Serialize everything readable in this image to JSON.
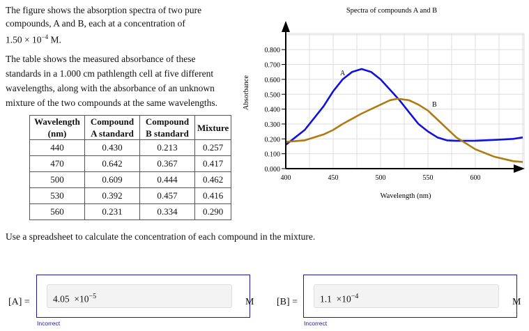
{
  "intro": {
    "line1": "The figure shows the absorption spectra of two pure",
    "line2": "compounds, A and B, each at a concentration of",
    "line3": "1.50 × 10",
    "line3_exp": "−4",
    "line3_end": " M."
  },
  "para2": [
    "The table shows the measured absorbance of these",
    "standards in a 1.000 cm pathlength cell at five different",
    "wavelengths, along with the absorbance of an unknown",
    "mixture of the two compounds at the same wavelengths."
  ],
  "table": {
    "headers": [
      "Wavelength (nm)",
      "Compound A standard",
      "Compound B standard",
      "Mixture"
    ],
    "rows": [
      [
        "440",
        "0.430",
        "0.213",
        "0.257"
      ],
      [
        "470",
        "0.642",
        "0.367",
        "0.417"
      ],
      [
        "500",
        "0.609",
        "0.444",
        "0.462"
      ],
      [
        "530",
        "0.392",
        "0.457",
        "0.416"
      ],
      [
        "560",
        "0.231",
        "0.334",
        "0.290"
      ]
    ]
  },
  "instruction": "Use a spreadsheet to calculate the concentration of each compound in the mixture.",
  "answers": [
    {
      "label": "[A] =",
      "value": "4.05",
      "exp_base": "×10",
      "exp": "−5",
      "unit": "M",
      "status": "Incorrect"
    },
    {
      "label": "[B] =",
      "value": "1.1",
      "exp_base": "×10",
      "exp": "−4",
      "unit": "M",
      "status": "Incorrect"
    }
  ],
  "chart_data": {
    "type": "line",
    "title": "Spectra of compounds A and B",
    "xlabel": "Wavelength (nm)",
    "ylabel": "Absorbance",
    "xlim": [
      400,
      650
    ],
    "ylim": [
      0,
      0.8
    ],
    "xticks": [
      "400",
      "450",
      "500",
      "550",
      "600"
    ],
    "yticks": [
      "0.000",
      "0.100",
      "0.200",
      "0.300",
      "0.400",
      "0.500",
      "0.600",
      "0.700",
      "0.800"
    ],
    "grid": true,
    "series": [
      {
        "name": "A",
        "color": "#1010e0",
        "x": [
          400,
          420,
          440,
          450,
          460,
          470,
          480,
          490,
          500,
          510,
          520,
          530,
          540,
          550,
          560,
          570,
          580,
          600,
          620,
          640,
          650
        ],
        "y": [
          0.16,
          0.26,
          0.42,
          0.52,
          0.6,
          0.65,
          0.67,
          0.65,
          0.6,
          0.53,
          0.46,
          0.38,
          0.3,
          0.25,
          0.21,
          0.19,
          0.187,
          0.188,
          0.193,
          0.2,
          0.21
        ]
      },
      {
        "name": "B",
        "color": "#b07a10",
        "x": [
          400,
          420,
          440,
          450,
          460,
          480,
          500,
          510,
          518,
          530,
          540,
          550,
          560,
          570,
          580,
          590,
          600,
          620,
          640,
          650
        ],
        "y": [
          0.18,
          0.19,
          0.23,
          0.26,
          0.3,
          0.37,
          0.43,
          0.46,
          0.47,
          0.46,
          0.43,
          0.39,
          0.33,
          0.27,
          0.21,
          0.17,
          0.13,
          0.08,
          0.05,
          0.045
        ]
      }
    ]
  }
}
